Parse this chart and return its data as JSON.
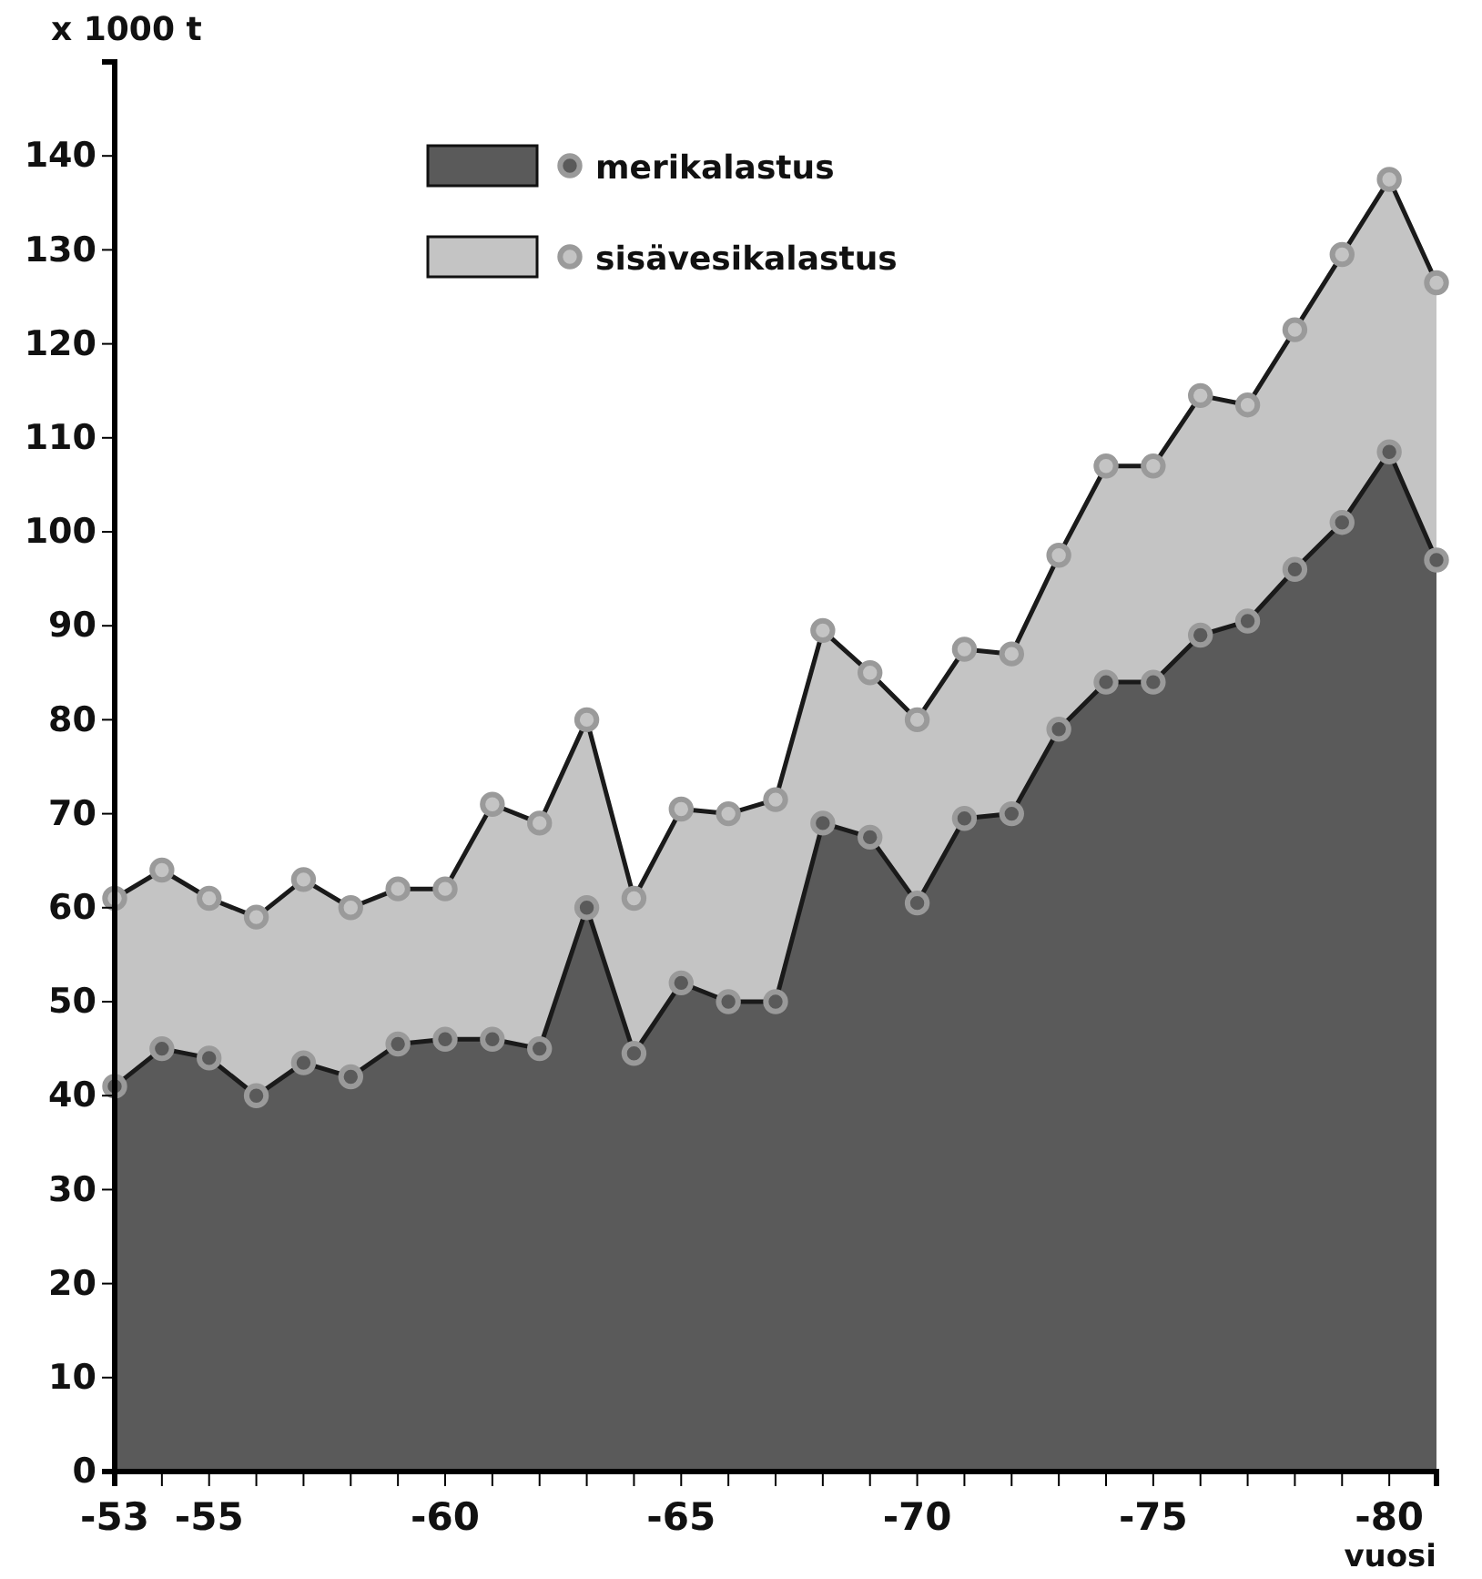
{
  "chart_data": {
    "type": "area",
    "stacked": true,
    "ylabel": "x 1000 t",
    "xlabel": "vuosi",
    "categories": [
      "-53",
      null,
      "-55",
      null,
      null,
      null,
      null,
      "-60",
      null,
      null,
      null,
      null,
      "-65",
      null,
      null,
      null,
      null,
      "-70",
      null,
      null,
      null,
      null,
      "-75",
      null,
      null,
      null,
      null,
      "-80",
      null
    ],
    "series": [
      {
        "name": "merikalastus",
        "color": "#5a5a5a",
        "values": [
          41,
          45,
          44,
          40,
          43.5,
          42,
          45.5,
          46,
          46,
          45,
          60,
          44.5,
          52,
          50,
          50,
          69,
          67.5,
          60.5,
          69.5,
          70,
          79,
          84,
          84,
          89,
          90.5,
          96,
          101,
          108.5,
          97
        ]
      },
      {
        "name": "sisävesikalastus",
        "color": "#c4c4c4",
        "values": [
          20,
          19,
          17,
          19,
          19.5,
          18,
          16.5,
          16,
          25,
          24,
          20,
          16.5,
          18.5,
          20,
          21.5,
          20.5,
          17.5,
          19.5,
          18,
          17,
          18.5,
          23,
          23,
          25.5,
          23,
          25.5,
          28.5,
          29,
          29.5
        ]
      }
    ],
    "ylim": [
      0,
      150
    ],
    "yticks": [
      0,
      10,
      20,
      30,
      40,
      50,
      60,
      70,
      80,
      90,
      100,
      110,
      120,
      130,
      140
    ],
    "marker": "circle",
    "legend": "top",
    "grid": false
  }
}
